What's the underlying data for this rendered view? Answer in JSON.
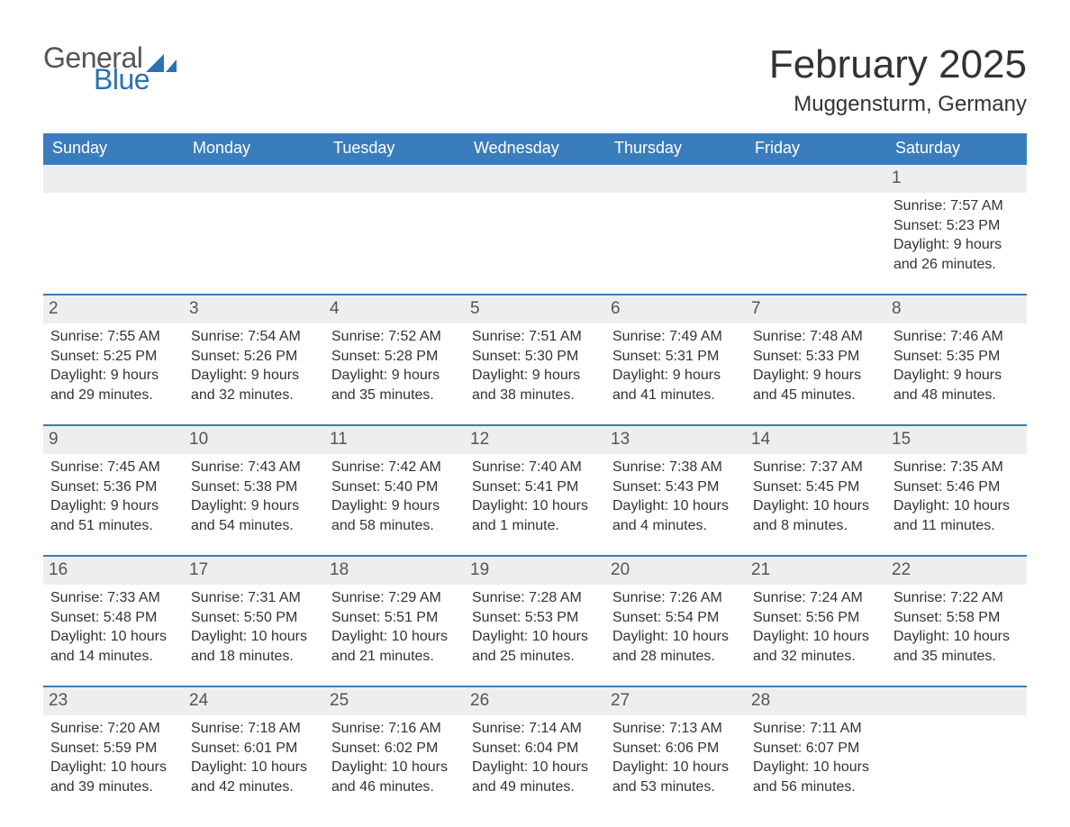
{
  "logo": {
    "general": "General",
    "blue": "Blue",
    "shape_color": "#2a72b5",
    "text_gray": "#555555"
  },
  "header": {
    "month_title": "February 2025",
    "location": "Muggensturm, Germany"
  },
  "calendar": {
    "type": "table",
    "header_bg": "#3a7dbc",
    "header_fg": "#ffffff",
    "row_divider_color": "#3a7dbc",
    "daynum_bg": "#eeeeee",
    "text_color": "#333333",
    "columns": [
      "Sunday",
      "Monday",
      "Tuesday",
      "Wednesday",
      "Thursday",
      "Friday",
      "Saturday"
    ],
    "weeks": [
      [
        null,
        null,
        null,
        null,
        null,
        null,
        {
          "n": "1",
          "sunrise": "Sunrise: 7:57 AM",
          "sunset": "Sunset: 5:23 PM",
          "day1": "Daylight: 9 hours",
          "day2": "and 26 minutes."
        }
      ],
      [
        {
          "n": "2",
          "sunrise": "Sunrise: 7:55 AM",
          "sunset": "Sunset: 5:25 PM",
          "day1": "Daylight: 9 hours",
          "day2": "and 29 minutes."
        },
        {
          "n": "3",
          "sunrise": "Sunrise: 7:54 AM",
          "sunset": "Sunset: 5:26 PM",
          "day1": "Daylight: 9 hours",
          "day2": "and 32 minutes."
        },
        {
          "n": "4",
          "sunrise": "Sunrise: 7:52 AM",
          "sunset": "Sunset: 5:28 PM",
          "day1": "Daylight: 9 hours",
          "day2": "and 35 minutes."
        },
        {
          "n": "5",
          "sunrise": "Sunrise: 7:51 AM",
          "sunset": "Sunset: 5:30 PM",
          "day1": "Daylight: 9 hours",
          "day2": "and 38 minutes."
        },
        {
          "n": "6",
          "sunrise": "Sunrise: 7:49 AM",
          "sunset": "Sunset: 5:31 PM",
          "day1": "Daylight: 9 hours",
          "day2": "and 41 minutes."
        },
        {
          "n": "7",
          "sunrise": "Sunrise: 7:48 AM",
          "sunset": "Sunset: 5:33 PM",
          "day1": "Daylight: 9 hours",
          "day2": "and 45 minutes."
        },
        {
          "n": "8",
          "sunrise": "Sunrise: 7:46 AM",
          "sunset": "Sunset: 5:35 PM",
          "day1": "Daylight: 9 hours",
          "day2": "and 48 minutes."
        }
      ],
      [
        {
          "n": "9",
          "sunrise": "Sunrise: 7:45 AM",
          "sunset": "Sunset: 5:36 PM",
          "day1": "Daylight: 9 hours",
          "day2": "and 51 minutes."
        },
        {
          "n": "10",
          "sunrise": "Sunrise: 7:43 AM",
          "sunset": "Sunset: 5:38 PM",
          "day1": "Daylight: 9 hours",
          "day2": "and 54 minutes."
        },
        {
          "n": "11",
          "sunrise": "Sunrise: 7:42 AM",
          "sunset": "Sunset: 5:40 PM",
          "day1": "Daylight: 9 hours",
          "day2": "and 58 minutes."
        },
        {
          "n": "12",
          "sunrise": "Sunrise: 7:40 AM",
          "sunset": "Sunset: 5:41 PM",
          "day1": "Daylight: 10 hours",
          "day2": "and 1 minute."
        },
        {
          "n": "13",
          "sunrise": "Sunrise: 7:38 AM",
          "sunset": "Sunset: 5:43 PM",
          "day1": "Daylight: 10 hours",
          "day2": "and 4 minutes."
        },
        {
          "n": "14",
          "sunrise": "Sunrise: 7:37 AM",
          "sunset": "Sunset: 5:45 PM",
          "day1": "Daylight: 10 hours",
          "day2": "and 8 minutes."
        },
        {
          "n": "15",
          "sunrise": "Sunrise: 7:35 AM",
          "sunset": "Sunset: 5:46 PM",
          "day1": "Daylight: 10 hours",
          "day2": "and 11 minutes."
        }
      ],
      [
        {
          "n": "16",
          "sunrise": "Sunrise: 7:33 AM",
          "sunset": "Sunset: 5:48 PM",
          "day1": "Daylight: 10 hours",
          "day2": "and 14 minutes."
        },
        {
          "n": "17",
          "sunrise": "Sunrise: 7:31 AM",
          "sunset": "Sunset: 5:50 PM",
          "day1": "Daylight: 10 hours",
          "day2": "and 18 minutes."
        },
        {
          "n": "18",
          "sunrise": "Sunrise: 7:29 AM",
          "sunset": "Sunset: 5:51 PM",
          "day1": "Daylight: 10 hours",
          "day2": "and 21 minutes."
        },
        {
          "n": "19",
          "sunrise": "Sunrise: 7:28 AM",
          "sunset": "Sunset: 5:53 PM",
          "day1": "Daylight: 10 hours",
          "day2": "and 25 minutes."
        },
        {
          "n": "20",
          "sunrise": "Sunrise: 7:26 AM",
          "sunset": "Sunset: 5:54 PM",
          "day1": "Daylight: 10 hours",
          "day2": "and 28 minutes."
        },
        {
          "n": "21",
          "sunrise": "Sunrise: 7:24 AM",
          "sunset": "Sunset: 5:56 PM",
          "day1": "Daylight: 10 hours",
          "day2": "and 32 minutes."
        },
        {
          "n": "22",
          "sunrise": "Sunrise: 7:22 AM",
          "sunset": "Sunset: 5:58 PM",
          "day1": "Daylight: 10 hours",
          "day2": "and 35 minutes."
        }
      ],
      [
        {
          "n": "23",
          "sunrise": "Sunrise: 7:20 AM",
          "sunset": "Sunset: 5:59 PM",
          "day1": "Daylight: 10 hours",
          "day2": "and 39 minutes."
        },
        {
          "n": "24",
          "sunrise": "Sunrise: 7:18 AM",
          "sunset": "Sunset: 6:01 PM",
          "day1": "Daylight: 10 hours",
          "day2": "and 42 minutes."
        },
        {
          "n": "25",
          "sunrise": "Sunrise: 7:16 AM",
          "sunset": "Sunset: 6:02 PM",
          "day1": "Daylight: 10 hours",
          "day2": "and 46 minutes."
        },
        {
          "n": "26",
          "sunrise": "Sunrise: 7:14 AM",
          "sunset": "Sunset: 6:04 PM",
          "day1": "Daylight: 10 hours",
          "day2": "and 49 minutes."
        },
        {
          "n": "27",
          "sunrise": "Sunrise: 7:13 AM",
          "sunset": "Sunset: 6:06 PM",
          "day1": "Daylight: 10 hours",
          "day2": "and 53 minutes."
        },
        {
          "n": "28",
          "sunrise": "Sunrise: 7:11 AM",
          "sunset": "Sunset: 6:07 PM",
          "day1": "Daylight: 10 hours",
          "day2": "and 56 minutes."
        },
        null
      ]
    ]
  }
}
